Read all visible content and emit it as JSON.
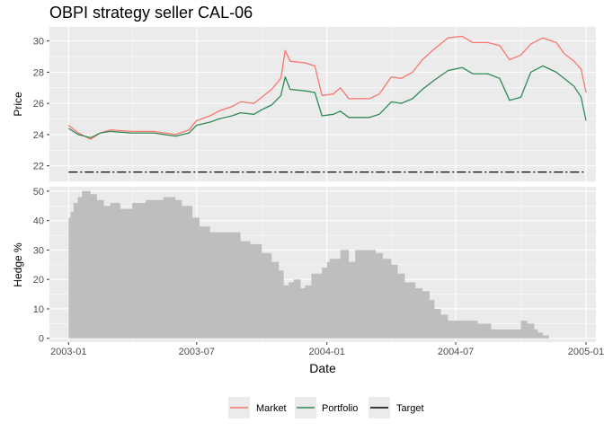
{
  "chart_data": {
    "type": "line",
    "title": "OBPI strategy seller CAL-06",
    "xlabel": "Date",
    "x_ticks": [
      "2003-01",
      "2003-07",
      "2004-01",
      "2004-07",
      "2005-01"
    ],
    "xlim": [
      "2002-12-05",
      "2005-01-15"
    ],
    "top_panel": {
      "ylabel": "Price",
      "ylim": [
        21.0,
        30.9
      ],
      "y_ticks": [
        "22",
        "24",
        "26",
        "28",
        "30"
      ],
      "series": [
        {
          "name": "Market",
          "color": "#F8766D",
          "points": [
            [
              "2003-01-01",
              24.6
            ],
            [
              "2003-01-15",
              24.1
            ],
            [
              "2003-02-01",
              23.7
            ],
            [
              "2003-02-15",
              24.1
            ],
            [
              "2003-03-01",
              24.3
            ],
            [
              "2003-04-01",
              24.2
            ],
            [
              "2003-05-01",
              24.2
            ],
            [
              "2003-06-01",
              24.0
            ],
            [
              "2003-06-20",
              24.3
            ],
            [
              "2003-07-01",
              24.9
            ],
            [
              "2003-07-20",
              25.2
            ],
            [
              "2003-08-01",
              25.5
            ],
            [
              "2003-08-20",
              25.8
            ],
            [
              "2003-09-01",
              26.1
            ],
            [
              "2003-09-20",
              26.0
            ],
            [
              "2003-10-01",
              26.4
            ],
            [
              "2003-10-15",
              26.9
            ],
            [
              "2003-10-28",
              27.6
            ],
            [
              "2003-11-03",
              29.4
            ],
            [
              "2003-11-10",
              28.7
            ],
            [
              "2003-12-01",
              28.6
            ],
            [
              "2003-12-15",
              28.4
            ],
            [
              "2003-12-25",
              26.5
            ],
            [
              "2004-01-10",
              26.6
            ],
            [
              "2004-01-20",
              27.0
            ],
            [
              "2004-02-01",
              26.3
            ],
            [
              "2004-03-01",
              26.3
            ],
            [
              "2004-03-15",
              26.6
            ],
            [
              "2004-04-01",
              27.7
            ],
            [
              "2004-04-15",
              27.6
            ],
            [
              "2004-05-01",
              28.0
            ],
            [
              "2004-05-15",
              28.8
            ],
            [
              "2004-06-01",
              29.5
            ],
            [
              "2004-06-20",
              30.2
            ],
            [
              "2004-07-10",
              30.3
            ],
            [
              "2004-07-25",
              29.9
            ],
            [
              "2004-08-15",
              29.9
            ],
            [
              "2004-09-01",
              29.7
            ],
            [
              "2004-09-15",
              28.8
            ],
            [
              "2004-10-01",
              29.1
            ],
            [
              "2004-10-15",
              29.8
            ],
            [
              "2004-11-01",
              30.2
            ],
            [
              "2004-11-20",
              29.9
            ],
            [
              "2004-12-01",
              29.2
            ],
            [
              "2004-12-15",
              28.7
            ],
            [
              "2004-12-25",
              28.2
            ],
            [
              "2005-01-01",
              26.7
            ]
          ]
        },
        {
          "name": "Portfolio",
          "color": "#2E8B57",
          "points": [
            [
              "2003-01-01",
              24.4
            ],
            [
              "2003-01-15",
              24.0
            ],
            [
              "2003-02-01",
              23.8
            ],
            [
              "2003-02-15",
              24.1
            ],
            [
              "2003-03-01",
              24.2
            ],
            [
              "2003-04-01",
              24.1
            ],
            [
              "2003-05-01",
              24.1
            ],
            [
              "2003-06-01",
              23.9
            ],
            [
              "2003-06-20",
              24.1
            ],
            [
              "2003-07-01",
              24.6
            ],
            [
              "2003-07-20",
              24.8
            ],
            [
              "2003-08-01",
              25.0
            ],
            [
              "2003-08-20",
              25.2
            ],
            [
              "2003-09-01",
              25.4
            ],
            [
              "2003-09-20",
              25.3
            ],
            [
              "2003-10-01",
              25.6
            ],
            [
              "2003-10-15",
              25.9
            ],
            [
              "2003-10-28",
              26.5
            ],
            [
              "2003-11-03",
              27.7
            ],
            [
              "2003-11-10",
              26.9
            ],
            [
              "2003-12-01",
              26.8
            ],
            [
              "2003-12-15",
              26.7
            ],
            [
              "2003-12-25",
              25.2
            ],
            [
              "2004-01-10",
              25.3
            ],
            [
              "2004-01-20",
              25.5
            ],
            [
              "2004-02-01",
              25.1
            ],
            [
              "2004-03-01",
              25.1
            ],
            [
              "2004-03-15",
              25.3
            ],
            [
              "2004-04-01",
              26.1
            ],
            [
              "2004-04-15",
              26.0
            ],
            [
              "2004-05-01",
              26.3
            ],
            [
              "2004-05-15",
              26.9
            ],
            [
              "2004-06-01",
              27.5
            ],
            [
              "2004-06-20",
              28.1
            ],
            [
              "2004-07-10",
              28.3
            ],
            [
              "2004-07-25",
              27.9
            ],
            [
              "2004-08-15",
              27.9
            ],
            [
              "2004-09-01",
              27.6
            ],
            [
              "2004-09-15",
              26.2
            ],
            [
              "2004-10-01",
              26.4
            ],
            [
              "2004-10-15",
              28.0
            ],
            [
              "2004-11-01",
              28.4
            ],
            [
              "2004-11-20",
              28.0
            ],
            [
              "2004-12-01",
              27.6
            ],
            [
              "2004-12-15",
              27.1
            ],
            [
              "2004-12-25",
              26.4
            ],
            [
              "2005-01-01",
              24.9
            ]
          ]
        },
        {
          "name": "Target",
          "color": "#000000",
          "dash": "longdash-dot",
          "points": [
            [
              "2003-01-01",
              21.6
            ],
            [
              "2005-01-01",
              21.6
            ]
          ]
        }
      ]
    },
    "bottom_panel": {
      "type": "area",
      "ylabel": "Hedge %",
      "ylim": [
        -1.3,
        51.5
      ],
      "y_ticks": [
        "0",
        "10",
        "20",
        "30",
        "40",
        "50"
      ],
      "color": "#BEBEBE",
      "steps": [
        [
          "2003-01-01",
          41
        ],
        [
          "2003-01-04",
          43
        ],
        [
          "2003-01-08",
          46
        ],
        [
          "2003-01-14",
          48
        ],
        [
          "2003-01-20",
          50
        ],
        [
          "2003-02-01",
          49
        ],
        [
          "2003-02-10",
          47
        ],
        [
          "2003-02-20",
          45
        ],
        [
          "2003-03-01",
          46
        ],
        [
          "2003-03-15",
          44
        ],
        [
          "2003-04-01",
          46
        ],
        [
          "2003-04-20",
          47
        ],
        [
          "2003-05-15",
          48
        ],
        [
          "2003-06-01",
          47
        ],
        [
          "2003-06-10",
          45
        ],
        [
          "2003-06-25",
          41
        ],
        [
          "2003-07-05",
          38
        ],
        [
          "2003-07-20",
          36
        ],
        [
          "2003-08-01",
          36
        ],
        [
          "2003-08-20",
          36
        ],
        [
          "2003-09-01",
          33
        ],
        [
          "2003-09-15",
          32
        ],
        [
          "2003-10-01",
          29
        ],
        [
          "2003-10-15",
          26
        ],
        [
          "2003-10-25",
          23
        ],
        [
          "2003-11-01",
          18
        ],
        [
          "2003-11-08",
          19
        ],
        [
          "2003-11-15",
          20
        ],
        [
          "2003-11-25",
          17
        ],
        [
          "2003-12-01",
          18
        ],
        [
          "2003-12-10",
          22
        ],
        [
          "2003-12-25",
          24
        ],
        [
          "2004-01-01",
          26
        ],
        [
          "2004-01-05",
          27
        ],
        [
          "2004-01-20",
          30
        ],
        [
          "2004-02-01",
          26
        ],
        [
          "2004-02-10",
          30
        ],
        [
          "2004-03-10",
          29
        ],
        [
          "2004-03-20",
          27
        ],
        [
          "2004-04-01",
          25
        ],
        [
          "2004-04-10",
          22
        ],
        [
          "2004-04-20",
          19
        ],
        [
          "2004-05-05",
          17
        ],
        [
          "2004-05-15",
          16
        ],
        [
          "2004-05-25",
          13
        ],
        [
          "2004-06-01",
          10
        ],
        [
          "2004-06-10",
          8
        ],
        [
          "2004-06-20",
          6
        ],
        [
          "2004-07-01",
          6
        ],
        [
          "2004-08-01",
          5
        ],
        [
          "2004-08-20",
          3
        ],
        [
          "2004-09-01",
          3
        ],
        [
          "2004-10-01",
          6
        ],
        [
          "2004-10-10",
          5
        ],
        [
          "2004-10-20",
          3
        ],
        [
          "2004-10-25",
          2
        ],
        [
          "2004-11-01",
          1
        ],
        [
          "2004-11-10",
          0
        ]
      ]
    },
    "legend": {
      "position": "bottom",
      "items": [
        {
          "label": "Market",
          "color": "#F8766D",
          "style": "solid"
        },
        {
          "label": "Portfolio",
          "color": "#2E8B57",
          "style": "solid"
        },
        {
          "label": "Target",
          "color": "#000000",
          "style": "solid"
        }
      ]
    },
    "panel_background": "#EBEBEB",
    "grid": true
  }
}
